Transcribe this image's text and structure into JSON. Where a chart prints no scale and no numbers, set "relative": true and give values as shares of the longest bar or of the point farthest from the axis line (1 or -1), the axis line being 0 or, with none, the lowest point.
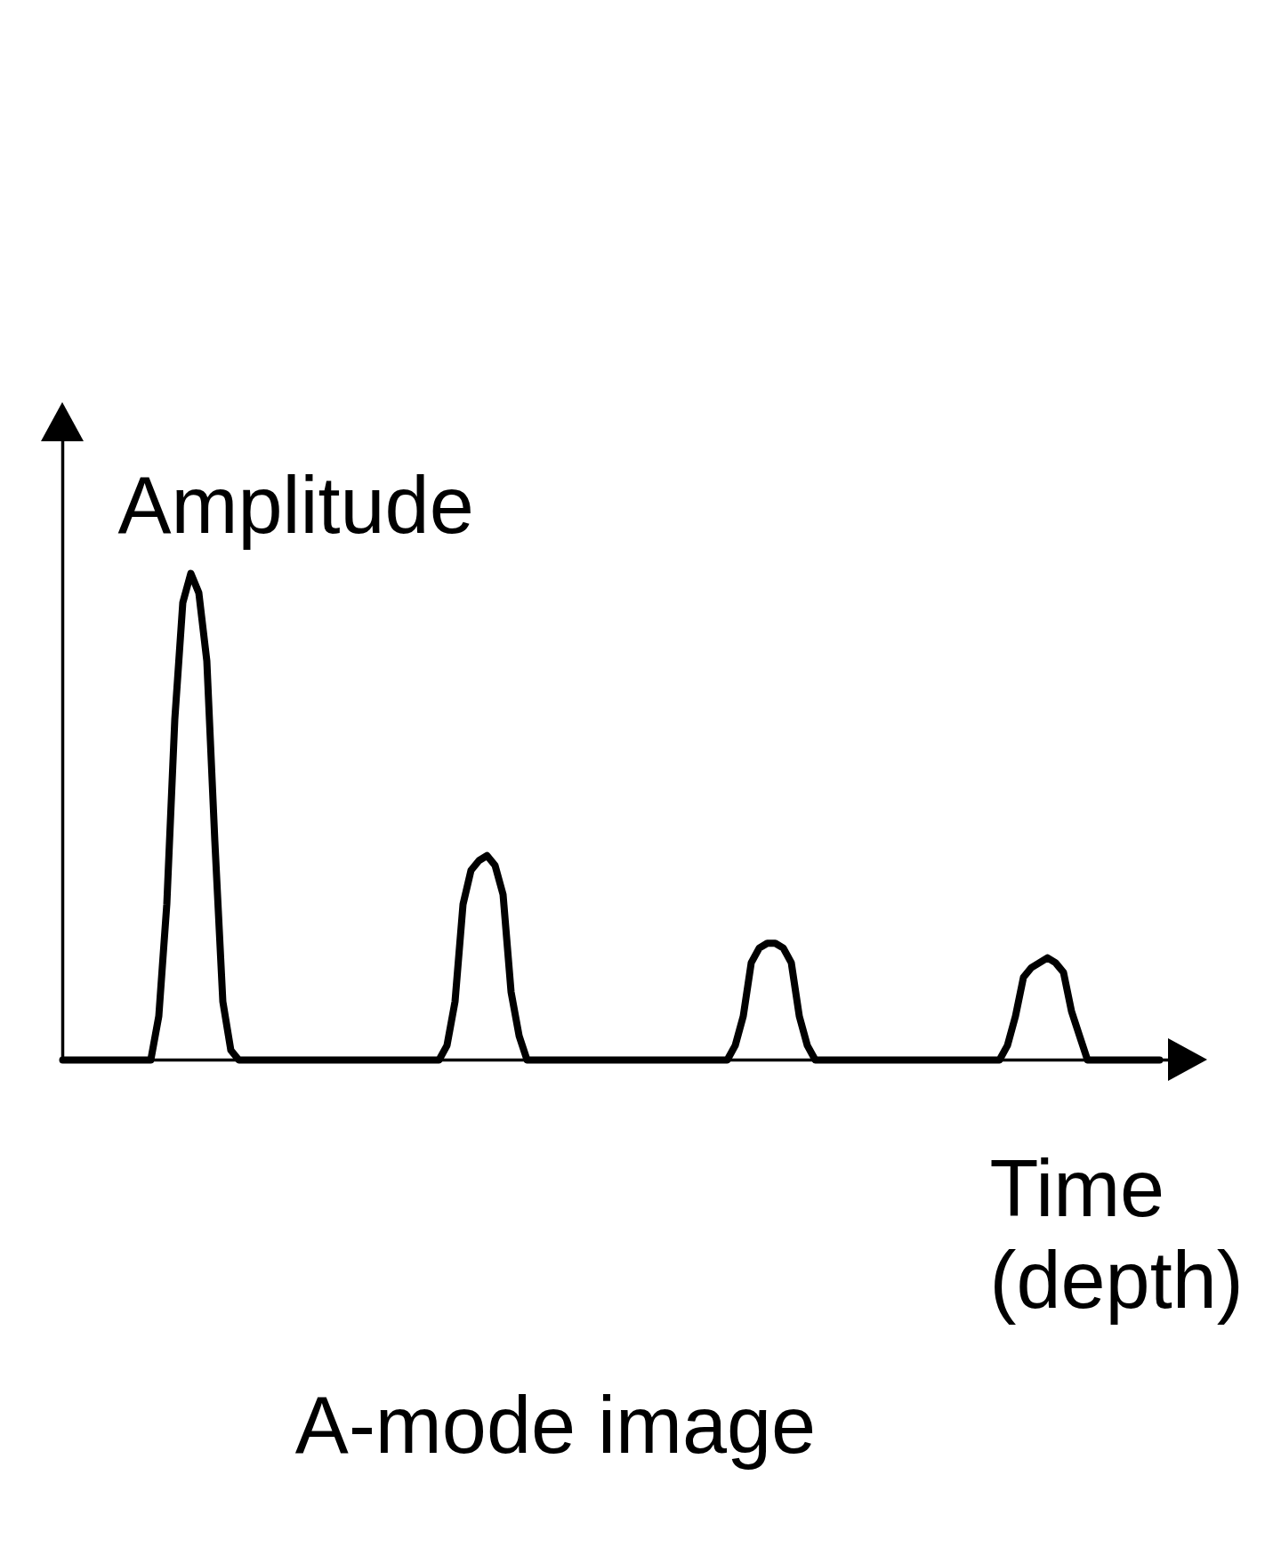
{
  "chart_data": {
    "type": "line",
    "title": "A-mode image",
    "xlabel": "Time (depth)",
    "ylabel": "Amplitude",
    "relative": true,
    "categories": [
      null,
      null,
      null,
      null,
      null,
      null,
      null,
      null,
      null,
      null,
      null,
      null,
      null,
      null,
      null,
      null,
      null,
      null,
      null,
      null,
      null,
      null,
      null,
      null,
      null,
      null,
      null,
      null,
      null,
      null,
      null,
      null,
      null,
      null,
      null,
      null,
      null,
      null,
      null,
      null,
      null,
      null,
      null,
      null,
      null,
      null,
      null,
      null,
      null,
      null,
      null,
      null,
      null,
      null,
      null,
      null,
      null,
      null,
      null,
      null,
      null,
      null,
      null,
      null,
      null,
      null,
      null,
      null,
      null,
      null,
      null,
      null,
      null,
      null,
      null,
      null,
      null,
      null,
      null,
      null,
      null,
      null,
      null,
      null,
      null,
      null,
      null,
      null,
      null,
      null,
      null,
      null,
      null,
      null,
      null,
      null,
      null,
      null,
      null,
      null,
      null,
      null,
      null,
      null,
      null,
      null,
      null,
      null,
      null,
      null,
      null,
      null,
      null,
      null,
      null,
      null,
      null,
      null,
      null,
      null,
      null,
      null,
      null,
      null,
      null,
      null,
      null,
      null,
      null,
      null,
      null,
      null,
      null,
      null,
      null,
      null,
      null,
      null
    ],
    "series": [
      {
        "color": "#000000",
        "values": [
          0,
          0,
          0,
          0,
          0,
          0,
          0,
          0,
          0,
          0,
          0,
          0,
          0.09,
          0.32,
          0.7,
          0.94,
          1,
          0.96,
          0.82,
          0.45,
          0.12,
          0.02,
          0,
          0,
          0,
          0,
          0,
          0,
          0,
          0,
          0,
          0,
          0,
          0,
          0,
          0,
          0,
          0,
          0,
          0,
          0,
          0,
          0,
          0,
          0,
          0,
          0,
          0,
          0.03,
          0.12,
          0.32,
          0.39,
          0.41,
          0.42,
          0.4,
          0.34,
          0.14,
          0.05,
          0,
          0,
          0,
          0,
          0,
          0,
          0,
          0,
          0,
          0,
          0,
          0,
          0,
          0,
          0,
          0,
          0,
          0,
          0,
          0,
          0,
          0,
          0,
          0,
          0,
          0,
          0.03,
          0.09,
          0.2,
          0.23,
          0.24,
          0.24,
          0.23,
          0.2,
          0.09,
          0.03,
          0,
          0,
          0,
          0,
          0,
          0,
          0,
          0,
          0,
          0,
          0,
          0,
          0,
          0,
          0,
          0,
          0,
          0,
          0,
          0,
          0,
          0,
          0,
          0,
          0.03,
          0.09,
          0.17,
          0.19,
          0.2,
          0.21,
          0.2,
          0.18,
          0.1,
          0.05,
          0,
          0,
          0,
          0,
          0,
          0,
          0,
          0,
          0,
          0
        ]
      }
    ]
  }
}
